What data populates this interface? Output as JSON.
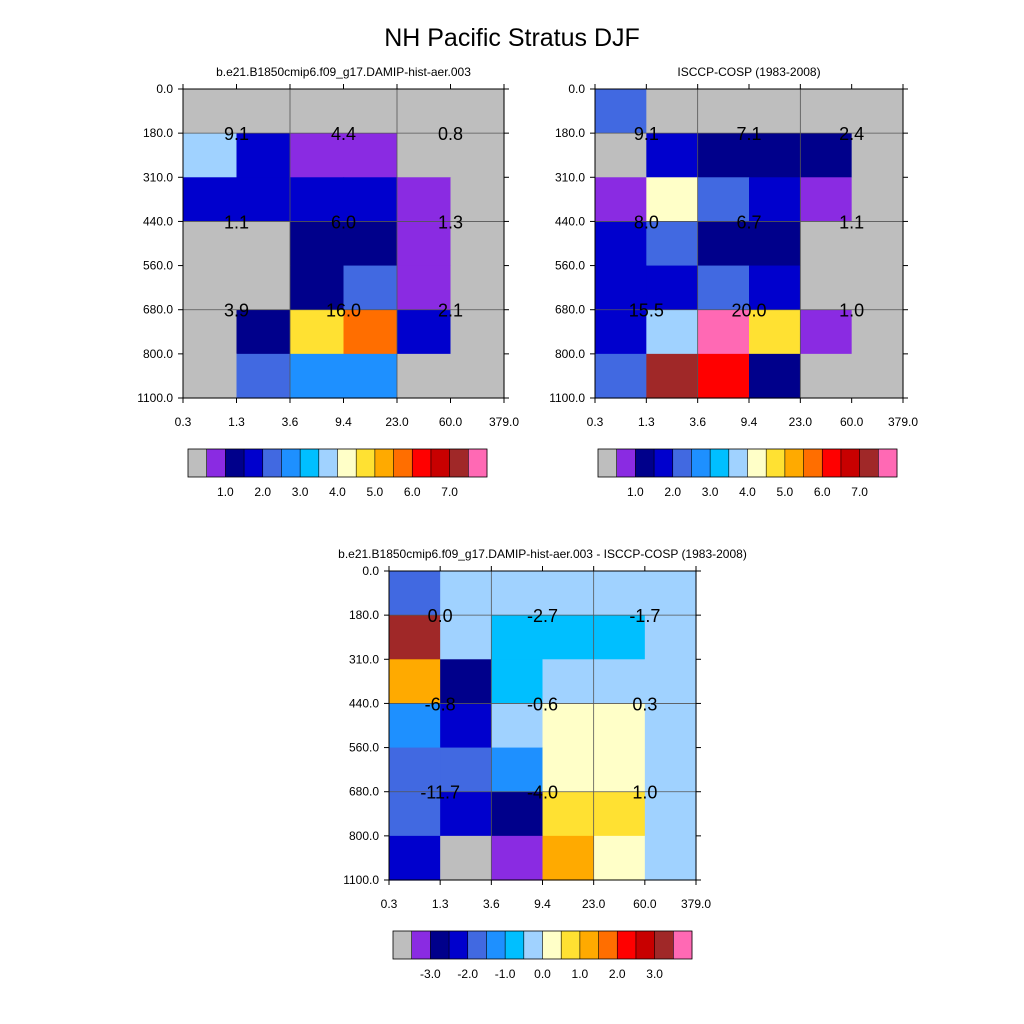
{
  "title": "NH Pacific Stratus DJF",
  "colors": {
    "sequential": [
      "#bebebe",
      "#8a2be2",
      "#00008b",
      "#0000cd",
      "#4169e1",
      "#1e90ff",
      "#00bfff",
      "#a0d2ff",
      "#ffffc8",
      "#ffe132",
      "#ffaa00",
      "#ff6e00",
      "#ff0000",
      "#c80000",
      "#a02828",
      "#ff69b4"
    ],
    "diverging": [
      "#bebebe",
      "#8a2be2",
      "#00008b",
      "#0000cd",
      "#4169e1",
      "#1e90ff",
      "#00bfff",
      "#a0d2ff",
      "#ffffc8",
      "#ffe132",
      "#ffaa00",
      "#ff6e00",
      "#ff0000",
      "#c80000",
      "#a02828",
      "#ff69b4"
    ]
  },
  "chart_data": [
    {
      "type": "heatmap",
      "title": "b.e21.B1850cmip6.f09_g17.DAMIP-hist-aer.003",
      "x_tick_labels": [
        "0.3",
        "1.3",
        "3.6",
        "9.4",
        "23.0",
        "60.0",
        "379.0"
      ],
      "y_tick_labels": [
        "0.0",
        "180.0",
        "310.0",
        "440.0",
        "560.0",
        "680.0",
        "800.0",
        "1100.0"
      ],
      "color_index_grid": [
        [
          0,
          0,
          0,
          0,
          0,
          0
        ],
        [
          7,
          3,
          1,
          1,
          0,
          0
        ],
        [
          3,
          3,
          3,
          3,
          1,
          0
        ],
        [
          0,
          0,
          2,
          2,
          1,
          0
        ],
        [
          0,
          0,
          2,
          4,
          1,
          0
        ],
        [
          0,
          2,
          9,
          11,
          3,
          0
        ],
        [
          0,
          4,
          5,
          5,
          0,
          0
        ]
      ],
      "annotations": [
        {
          "col": 1,
          "row": 1,
          "text": "9.1"
        },
        {
          "col": 3,
          "row": 1,
          "text": "4.4"
        },
        {
          "col": 5,
          "row": 1,
          "text": "0.8"
        },
        {
          "col": 1,
          "row": 3,
          "text": "1.1"
        },
        {
          "col": 3,
          "row": 3,
          "text": "6.0"
        },
        {
          "col": 5,
          "row": 3,
          "text": "1.3"
        },
        {
          "col": 1,
          "row": 5,
          "text": "3.9"
        },
        {
          "col": 3,
          "row": 5,
          "text": "16.0"
        },
        {
          "col": 5,
          "row": 5,
          "text": "2.1"
        }
      ],
      "colorbar": {
        "palette": "sequential",
        "labels": [
          "1.0",
          "2.0",
          "3.0",
          "4.0",
          "5.0",
          "6.0",
          "7.0"
        ]
      }
    },
    {
      "type": "heatmap",
      "title": "ISCCP-COSP (1983-2008)",
      "x_tick_labels": [
        "0.3",
        "1.3",
        "3.6",
        "9.4",
        "23.0",
        "60.0",
        "379.0"
      ],
      "y_tick_labels": [
        "0.0",
        "180.0",
        "310.0",
        "440.0",
        "560.0",
        "680.0",
        "800.0",
        "1100.0"
      ],
      "color_index_grid": [
        [
          4,
          0,
          0,
          0,
          0,
          0
        ],
        [
          0,
          3,
          2,
          2,
          2,
          0
        ],
        [
          1,
          8,
          4,
          3,
          1,
          0
        ],
        [
          3,
          4,
          2,
          2,
          0,
          0
        ],
        [
          3,
          3,
          4,
          3,
          0,
          0
        ],
        [
          3,
          7,
          15,
          9,
          1,
          0
        ],
        [
          4,
          14,
          12,
          2,
          0,
          0
        ]
      ],
      "annotations": [
        {
          "col": 1,
          "row": 1,
          "text": "9.1"
        },
        {
          "col": 3,
          "row": 1,
          "text": "7.1"
        },
        {
          "col": 5,
          "row": 1,
          "text": "2.4"
        },
        {
          "col": 1,
          "row": 3,
          "text": "8.0"
        },
        {
          "col": 3,
          "row": 3,
          "text": "6.7"
        },
        {
          "col": 5,
          "row": 3,
          "text": "1.1"
        },
        {
          "col": 1,
          "row": 5,
          "text": "15.5"
        },
        {
          "col": 3,
          "row": 5,
          "text": "20.0"
        },
        {
          "col": 5,
          "row": 5,
          "text": "1.0"
        }
      ],
      "colorbar": {
        "palette": "sequential",
        "labels": [
          "1.0",
          "2.0",
          "3.0",
          "4.0",
          "5.0",
          "6.0",
          "7.0"
        ]
      }
    },
    {
      "type": "heatmap",
      "title": "b.e21.B1850cmip6.f09_g17.DAMIP-hist-aer.003 - ISCCP-COSP (1983-2008)",
      "x_tick_labels": [
        "0.3",
        "1.3",
        "3.6",
        "9.4",
        "23.0",
        "60.0",
        "379.0"
      ],
      "y_tick_labels": [
        "0.0",
        "180.0",
        "310.0",
        "440.0",
        "560.0",
        "680.0",
        "800.0",
        "1100.0"
      ],
      "color_index_grid": [
        [
          4,
          7,
          7,
          7,
          7,
          7
        ],
        [
          14,
          7,
          6,
          6,
          6,
          7
        ],
        [
          10,
          2,
          6,
          7,
          7,
          7
        ],
        [
          5,
          3,
          7,
          8,
          8,
          7
        ],
        [
          4,
          4,
          5,
          8,
          8,
          7
        ],
        [
          4,
          3,
          2,
          9,
          9,
          7
        ],
        [
          3,
          0,
          1,
          10,
          8,
          7
        ]
      ],
      "annotations": [
        {
          "col": 1,
          "row": 1,
          "text": "0.0"
        },
        {
          "col": 3,
          "row": 1,
          "text": "-2.7"
        },
        {
          "col": 5,
          "row": 1,
          "text": "-1.7"
        },
        {
          "col": 1,
          "row": 3,
          "text": "-6.8"
        },
        {
          "col": 3,
          "row": 3,
          "text": "-0.6"
        },
        {
          "col": 5,
          "row": 3,
          "text": "0.3"
        },
        {
          "col": 1,
          "row": 5,
          "text": "-11.7"
        },
        {
          "col": 3,
          "row": 5,
          "text": "-4.0"
        },
        {
          "col": 5,
          "row": 5,
          "text": "1.0"
        }
      ],
      "colorbar": {
        "palette": "diverging",
        "labels": [
          "-3.0",
          "-2.0",
          "-1.0",
          "0.0",
          "1.0",
          "2.0",
          "3.0"
        ]
      }
    }
  ]
}
